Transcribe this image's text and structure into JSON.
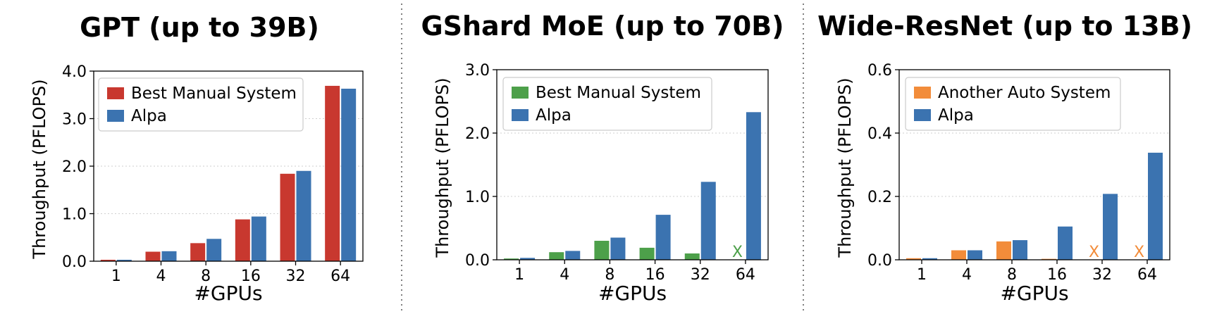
{
  "chart_data": [
    {
      "type": "bar",
      "title": "GPT (up to 39B)",
      "xlabel": "#GPUs",
      "ylabel": "Throughput (PFLOPS)",
      "ylim": [
        0,
        4.0
      ],
      "yticks": [
        "0.0",
        "1.0",
        "2.0",
        "3.0",
        "4.0"
      ],
      "ytick_values": [
        0,
        1,
        2,
        3,
        4
      ],
      "categories": [
        "1",
        "4",
        "8",
        "16",
        "32",
        "64"
      ],
      "legend_position": "top-left",
      "grid": "horizontal-dotted",
      "series": [
        {
          "name": "Best Manual System",
          "color": "#c8382f",
          "values": [
            0.03,
            0.2,
            0.38,
            0.88,
            1.84,
            3.69
          ],
          "failed": [
            false,
            false,
            false,
            false,
            false,
            false
          ]
        },
        {
          "name": "Alpa",
          "color": "#3b73b0",
          "values": [
            0.03,
            0.21,
            0.47,
            0.94,
            1.9,
            3.63
          ],
          "failed": [
            false,
            false,
            false,
            false,
            false,
            false
          ]
        }
      ],
      "fail_marker": "X"
    },
    {
      "type": "bar",
      "title": "GShard MoE (up to 70B)",
      "xlabel": "#GPUs",
      "ylabel": "Throughput (PFLOPS)",
      "ylim": [
        0,
        3.0
      ],
      "yticks": [
        "0.0",
        "1.0",
        "2.0",
        "3.0"
      ],
      "ytick_values": [
        0,
        1,
        2,
        3
      ],
      "categories": [
        "1",
        "4",
        "8",
        "16",
        "32",
        "64"
      ],
      "legend_position": "top-left",
      "grid": "horizontal-dotted",
      "series": [
        {
          "name": "Best Manual System",
          "color": "#4da04a",
          "values": [
            0.02,
            0.12,
            0.3,
            0.19,
            0.1,
            0
          ],
          "failed": [
            false,
            false,
            false,
            false,
            false,
            true
          ]
        },
        {
          "name": "Alpa",
          "color": "#3b73b0",
          "values": [
            0.03,
            0.14,
            0.35,
            0.71,
            1.23,
            2.33
          ],
          "failed": [
            false,
            false,
            false,
            false,
            false,
            false
          ]
        }
      ],
      "fail_marker": "X"
    },
    {
      "type": "bar",
      "title": "Wide-ResNet (up to 13B)",
      "xlabel": "#GPUs",
      "ylabel": "Throughput (PFLOPS)",
      "ylim": [
        0,
        0.6
      ],
      "yticks": [
        "0.0",
        "0.2",
        "0.4",
        "0.6"
      ],
      "ytick_values": [
        0,
        0.2,
        0.4,
        0.6
      ],
      "categories": [
        "1",
        "4",
        "8",
        "16",
        "32",
        "64"
      ],
      "legend_position": "top-left",
      "grid": "horizontal-dotted",
      "series": [
        {
          "name": "Another Auto System",
          "color": "#f28c3a",
          "values": [
            0.005,
            0.03,
            0.058,
            0.003,
            0,
            0
          ],
          "failed": [
            false,
            false,
            false,
            false,
            true,
            true
          ]
        },
        {
          "name": "Alpa",
          "color": "#3b73b0",
          "values": [
            0.005,
            0.03,
            0.062,
            0.105,
            0.208,
            0.338
          ],
          "failed": [
            false,
            false,
            false,
            false,
            false,
            false
          ]
        }
      ],
      "fail_marker": "X"
    }
  ]
}
